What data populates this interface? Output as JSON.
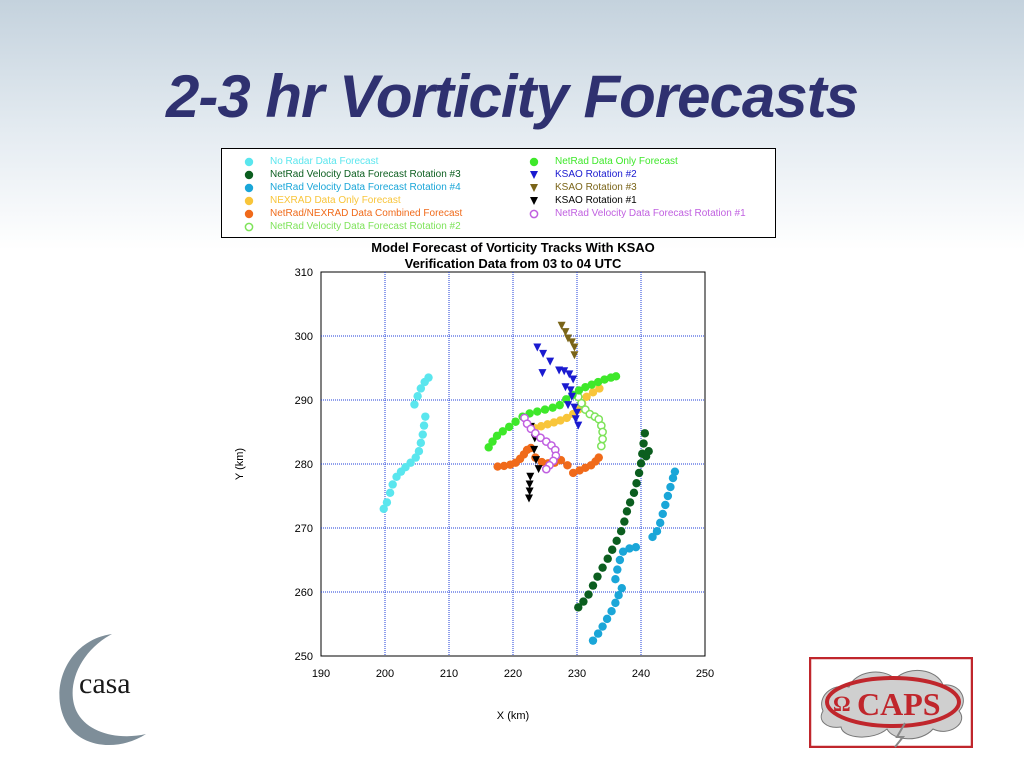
{
  "slide": {
    "title": "2-3 hr Vorticity Forecasts",
    "casa_logo_text": "casa",
    "caps_logo_text": "CAPS"
  },
  "legend": {
    "items": [
      {
        "label": "No Radar Data Forecast",
        "color": "#5ae6ee",
        "marker": "circle"
      },
      {
        "label": "NetRad Velocity Data Forecast Rotation #3",
        "color": "#0b5e1f",
        "marker": "circle"
      },
      {
        "label": "NetRad Velocity Data Forecast Rotation #4",
        "color": "#1aa6d8",
        "marker": "circle"
      },
      {
        "label": "NEXRAD Data Only Forecast",
        "color": "#f8c53a",
        "marker": "circle"
      },
      {
        "label": "NetRad/NEXRAD Data Combined Forecast",
        "color": "#f06a1a",
        "marker": "circle"
      },
      {
        "label": "NetRad Velocity Data Forecast Rotation #2",
        "color": "#7ee35a",
        "marker": "open-circle"
      },
      {
        "label": "NetRad Data Only Forecast",
        "color": "#3ee82a",
        "marker": "circle"
      },
      {
        "label": "KSAO Rotation #2",
        "color": "#1a1ad0",
        "marker": "triangle-down"
      },
      {
        "label": "KSAO Rotation #3",
        "color": "#7a6418",
        "marker": "triangle-down"
      },
      {
        "label": "KSAO Rotation #1",
        "color": "#000000",
        "marker": "triangle-down"
      },
      {
        "label": "NetRad Velocity Data Forecast Rotation #1",
        "color": "#c060e0",
        "marker": "open-circle"
      }
    ]
  },
  "chart_data": {
    "type": "scatter",
    "title": "Model Forecast of Vorticity Tracks With KSAO",
    "subtitle": "Verification Data from 03 to 04 UTC",
    "xlabel": "X (km)",
    "ylabel": "Y (km)",
    "xlim": [
      190,
      250
    ],
    "ylim": [
      250,
      310
    ],
    "xticks": [
      "190",
      "200",
      "210",
      "220",
      "230",
      "240",
      "250"
    ],
    "yticks": [
      "250",
      "260",
      "270",
      "280",
      "290",
      "300",
      "310"
    ],
    "grid": true,
    "series": [
      {
        "name": "No Radar Data Forecast",
        "color": "#5ae6ee",
        "marker": "circle",
        "points": [
          [
            199.8,
            273
          ],
          [
            200.3,
            274
          ],
          [
            200.8,
            275.5
          ],
          [
            201.2,
            276.8
          ],
          [
            201.8,
            278
          ],
          [
            202.5,
            278.8
          ],
          [
            203.2,
            279.5
          ],
          [
            204,
            280.2
          ],
          [
            204.8,
            281
          ],
          [
            205.3,
            282
          ],
          [
            205.6,
            283.3
          ],
          [
            205.9,
            284.6
          ],
          [
            206.1,
            286
          ],
          [
            206.3,
            287.4
          ],
          [
            204.6,
            289.3
          ],
          [
            205.1,
            290.6
          ],
          [
            205.6,
            291.8
          ],
          [
            206.2,
            292.8
          ],
          [
            206.8,
            293.5
          ]
        ]
      },
      {
        "name": "NetRad Velocity Data Forecast Rotation #3",
        "color": "#0b5e1f",
        "marker": "circle",
        "points": [
          [
            230.2,
            257.6
          ],
          [
            231,
            258.5
          ],
          [
            231.8,
            259.6
          ],
          [
            232.5,
            261
          ],
          [
            233.2,
            262.4
          ],
          [
            234,
            263.8
          ],
          [
            234.8,
            265.2
          ],
          [
            235.5,
            266.6
          ],
          [
            236.2,
            268
          ],
          [
            236.9,
            269.5
          ],
          [
            237.4,
            271
          ],
          [
            237.8,
            272.6
          ],
          [
            238.3,
            274
          ],
          [
            238.9,
            275.5
          ],
          [
            239.3,
            277
          ],
          [
            239.7,
            278.6
          ],
          [
            240,
            280.1
          ],
          [
            240.2,
            281.6
          ],
          [
            240.4,
            283.2
          ],
          [
            240.6,
            284.8
          ],
          [
            240.8,
            281.2
          ],
          [
            241.2,
            282
          ]
        ]
      },
      {
        "name": "NetRad Velocity Data Forecast Rotation #4",
        "color": "#1aa6d8",
        "marker": "circle",
        "points": [
          [
            232.5,
            252.4
          ],
          [
            233.3,
            253.5
          ],
          [
            234,
            254.6
          ],
          [
            234.7,
            255.8
          ],
          [
            235.4,
            257
          ],
          [
            236,
            258.3
          ],
          [
            236.5,
            259.5
          ],
          [
            237,
            260.6
          ],
          [
            236,
            262
          ],
          [
            236.3,
            263.5
          ],
          [
            236.7,
            265
          ],
          [
            237.2,
            266.3
          ],
          [
            238.2,
            266.8
          ],
          [
            239.2,
            267
          ],
          [
            241.8,
            268.6
          ],
          [
            242.5,
            269.5
          ],
          [
            243,
            270.8
          ],
          [
            243.4,
            272.2
          ],
          [
            243.8,
            273.6
          ],
          [
            244.2,
            275
          ],
          [
            244.6,
            276.4
          ],
          [
            245,
            277.8
          ],
          [
            245.3,
            278.8
          ]
        ]
      },
      {
        "name": "NEXRAD Data Only Forecast",
        "color": "#f8c53a",
        "marker": "circle",
        "points": [
          [
            223.4,
            285.6
          ],
          [
            224.4,
            285.9
          ],
          [
            225.4,
            286.2
          ],
          [
            226.4,
            286.5
          ],
          [
            227.4,
            286.8
          ],
          [
            228.4,
            287.2
          ],
          [
            229.4,
            287.8
          ],
          [
            230.2,
            288.5
          ],
          [
            230.8,
            289.5
          ],
          [
            231.5,
            290.5
          ],
          [
            232.5,
            291.2
          ],
          [
            233.5,
            291.8
          ]
        ]
      },
      {
        "name": "NetRad/NEXRAD Data Combined Forecast",
        "color": "#f06a1a",
        "marker": "circle",
        "points": [
          [
            217.6,
            279.6
          ],
          [
            218.6,
            279.7
          ],
          [
            219.6,
            279.9
          ],
          [
            220.4,
            280.2
          ],
          [
            221.1,
            280.8
          ],
          [
            221.7,
            281.5
          ],
          [
            222.2,
            282.2
          ],
          [
            222.8,
            282.5
          ],
          [
            223.5,
            281
          ],
          [
            224.5,
            280.3
          ],
          [
            225.5,
            280.1
          ],
          [
            226.5,
            280.2
          ],
          [
            227.5,
            280.6
          ],
          [
            228.5,
            279.8
          ],
          [
            229.4,
            278.6
          ],
          [
            230.4,
            279
          ],
          [
            231.3,
            279.4
          ],
          [
            232.2,
            279.8
          ],
          [
            232.9,
            280.4
          ],
          [
            233.4,
            281
          ]
        ]
      },
      {
        "name": "NetRad Velocity Data Forecast Rotation #2",
        "color": "#7ee35a",
        "marker": "open-circle",
        "points": [
          [
            230.2,
            290.5
          ],
          [
            230.7,
            289.5
          ],
          [
            231.3,
            288.5
          ],
          [
            232,
            287.8
          ],
          [
            232.8,
            287.4
          ],
          [
            233.4,
            287
          ],
          [
            233.8,
            286
          ],
          [
            234,
            285
          ],
          [
            234,
            283.9
          ],
          [
            233.8,
            282.8
          ]
        ]
      },
      {
        "name": "NetRad Data Only Forecast",
        "color": "#3ee82a",
        "marker": "circle",
        "points": [
          [
            216.2,
            282.6
          ],
          [
            216.8,
            283.5
          ],
          [
            217.5,
            284.4
          ],
          [
            218.4,
            285.1
          ],
          [
            219.4,
            285.8
          ],
          [
            220.4,
            286.6
          ],
          [
            221.5,
            287.4
          ],
          [
            222.6,
            287.9
          ],
          [
            223.8,
            288.2
          ],
          [
            225,
            288.5
          ],
          [
            226.2,
            288.8
          ],
          [
            227.3,
            289.2
          ],
          [
            228.3,
            290.1
          ],
          [
            229.3,
            290.8
          ],
          [
            230.3,
            291.5
          ],
          [
            231.3,
            292
          ],
          [
            232.3,
            292.4
          ],
          [
            233.3,
            292.8
          ],
          [
            234.3,
            293.2
          ],
          [
            235.3,
            293.5
          ],
          [
            236.1,
            293.7
          ]
        ]
      },
      {
        "name": "KSAO Rotation #2",
        "color": "#1a1ad0",
        "marker": "triangle-down",
        "points": [
          [
            223.8,
            298.2
          ],
          [
            224.7,
            297.2
          ],
          [
            225.8,
            296
          ],
          [
            224.6,
            294.2
          ],
          [
            227.2,
            294.6
          ],
          [
            228,
            294.5
          ],
          [
            228.8,
            294
          ],
          [
            229.4,
            293.2
          ],
          [
            228.2,
            292
          ],
          [
            229,
            291.5
          ],
          [
            229.2,
            290.5
          ],
          [
            228.6,
            289.2
          ],
          [
            229.6,
            288.8
          ],
          [
            230,
            288
          ],
          [
            229.8,
            287
          ],
          [
            230.2,
            286
          ]
        ]
      },
      {
        "name": "KSAO Rotation #3",
        "color": "#7a6418",
        "marker": "triangle-down",
        "points": [
          [
            227.6,
            301.6
          ],
          [
            228.2,
            300.6
          ],
          [
            228.6,
            299.6
          ],
          [
            229.2,
            299
          ],
          [
            229.6,
            298.2
          ],
          [
            229.6,
            297
          ]
        ]
      },
      {
        "name": "KSAO Rotation #1",
        "color": "#000000",
        "marker": "triangle-down",
        "points": [
          [
            222.8,
            285.8
          ],
          [
            223.4,
            284
          ],
          [
            223.3,
            282.2
          ],
          [
            223.6,
            280.6
          ],
          [
            224,
            279.2
          ],
          [
            222.7,
            278
          ],
          [
            222.6,
            276.8
          ],
          [
            222.6,
            275.7
          ],
          [
            222.5,
            274.6
          ]
        ]
      },
      {
        "name": "NetRad Velocity Data Forecast Rotation #1",
        "color": "#c060e0",
        "marker": "open-circle",
        "points": [
          [
            221.8,
            287.2
          ],
          [
            222.2,
            286.3
          ],
          [
            222.8,
            285.5
          ],
          [
            223.5,
            284.8
          ],
          [
            224.3,
            284.1
          ],
          [
            225.2,
            283.5
          ],
          [
            226,
            282.9
          ],
          [
            226.6,
            282.2
          ],
          [
            226.7,
            281.3
          ],
          [
            226.3,
            280.5
          ],
          [
            225.7,
            279.8
          ],
          [
            225.2,
            279.2
          ]
        ]
      }
    ]
  }
}
